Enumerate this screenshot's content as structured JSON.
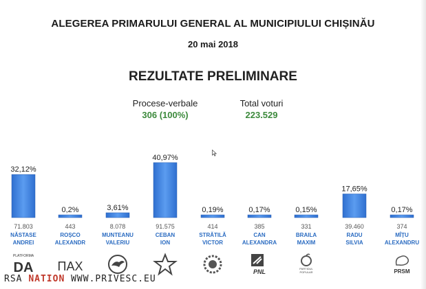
{
  "header": {
    "title": "ALEGEREA PRIMARULUI GENERAL AL MUNICIPIULUI CHIȘINĂU",
    "date": "20 mai 2018",
    "subtitle": "REZULTATE PRELIMINARE"
  },
  "stats": {
    "pv_label": "Procese-verbale",
    "pv_value": "306 (100%)",
    "votes_label": "Total voturi",
    "votes_value": "223.529"
  },
  "chart_data": {
    "type": "bar",
    "categories": [
      "NĂSTASE ANDREI",
      "ROȘCO ALEXANDR",
      "MUNTEANU VALERIU",
      "CEBAN ION",
      "STRĂTILĂ VICTOR",
      "CAN ALEXANDRA",
      "BRAILA MAXIM",
      "RADU SILVIA",
      "MÎȚU ALEXANDRU"
    ],
    "values": [
      32.12,
      0.2,
      3.61,
      40.97,
      0.19,
      0.17,
      0.15,
      17.65,
      0.17
    ],
    "value_labels": [
      "32,12%",
      "0,2%",
      "3,61%",
      "40,97%",
      "0,19%",
      "0,17%",
      "0,15%",
      "17,65%",
      "0,17%"
    ],
    "votes": [
      "71.803",
      "443",
      "8.078",
      "91.575",
      "414",
      "385",
      "331",
      "39.460",
      "374"
    ],
    "first_names": [
      "NĂSTASE",
      "ROȘCO",
      "MUNTEANU",
      "CEBAN",
      "STRĂTILĂ",
      "CAN",
      "BRAILA",
      "RADU",
      "MÎȚU"
    ],
    "last_names": [
      "ANDREI",
      "ALEXANDR",
      "VALERIU",
      "ION",
      "VICTOR",
      "ALEXANDRA",
      "MAXIM",
      "SILVIA",
      "ALEXANDRU"
    ],
    "ylim": [
      0,
      45
    ],
    "bar_color": "#3d7fd9",
    "grid": false
  },
  "logos": [
    {
      "icon": "platforma-da-logo",
      "text": "DA",
      "caption": "PLATFORMA"
    },
    {
      "icon": "pax-logo",
      "text": "ПАХ"
    },
    {
      "icon": "bird-emblem-logo"
    },
    {
      "icon": "red-star-logo"
    },
    {
      "icon": "sunflower-logo"
    },
    {
      "icon": "pnl-logo",
      "text": "PNL"
    },
    {
      "icon": "partidul-popular-logo",
      "caption": "PARTIDUL POPULAR"
    },
    {
      "icon": "blank-logo"
    },
    {
      "icon": "prsm-logo",
      "text": "PRSM"
    }
  ],
  "watermark": {
    "prefix": "RSA",
    "station": "NATION",
    "url": "WWW.PRIVESC.EU"
  },
  "colors": {
    "accent_blue": "#3d7fd9",
    "name_blue": "#2a6bc1",
    "green_value": "#3c8a3c"
  }
}
